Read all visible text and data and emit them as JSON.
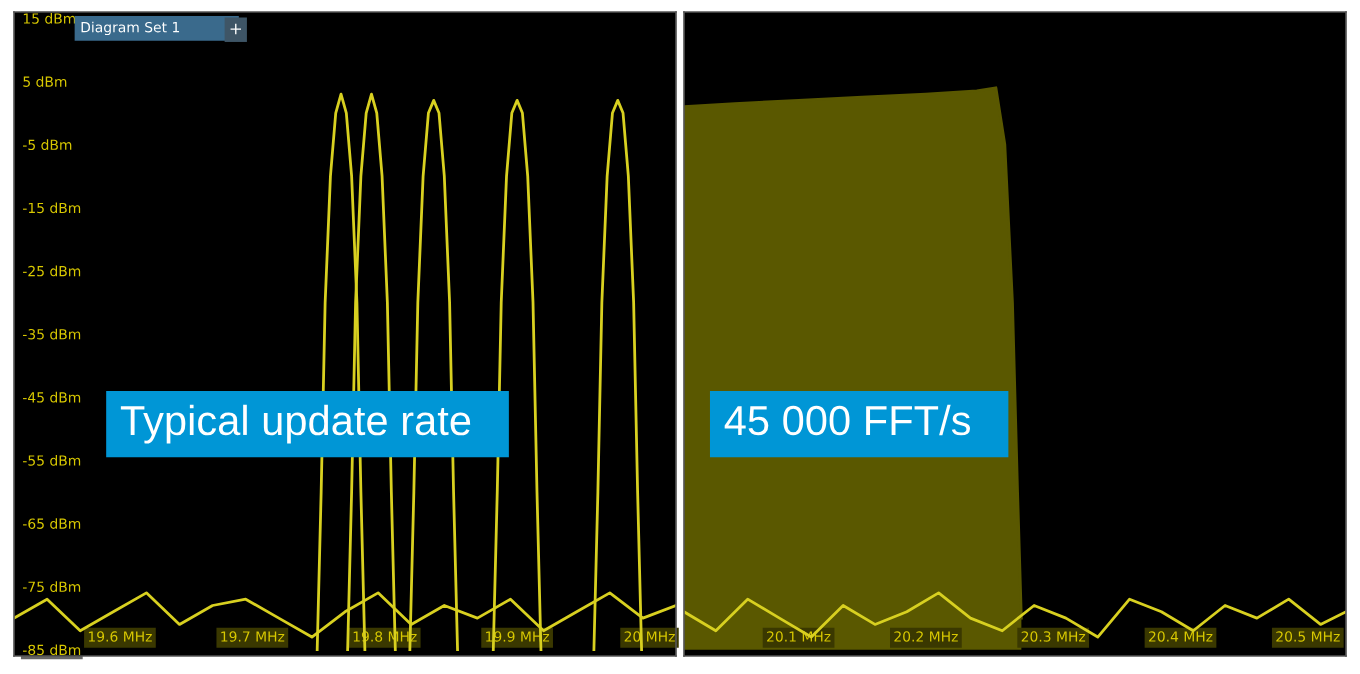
{
  "chart_data": [
    {
      "type": "line",
      "xlim": [
        19.52,
        20.02
      ],
      "ylim": [
        -86,
        16
      ],
      "xticks": [
        {
          "value": 19.6,
          "label": "19.6 MHz"
        },
        {
          "value": 19.7,
          "label": "19.7 MHz"
        },
        {
          "value": 19.8,
          "label": "19.8 MHz"
        },
        {
          "value": 19.9,
          "label": "19.9 MHz"
        },
        {
          "value": 20.0,
          "label": "20 MHz"
        }
      ],
      "yticks": [
        {
          "value": 15,
          "label": "15 dBm"
        },
        {
          "value": 5,
          "label": "5 dBm"
        },
        {
          "value": -5,
          "label": "-5 dBm"
        },
        {
          "value": -15,
          "label": "-15 dBm"
        },
        {
          "value": -25,
          "label": "-25 dBm"
        },
        {
          "value": -35,
          "label": "-35 dBm"
        },
        {
          "value": -45,
          "label": "-45 dBm"
        },
        {
          "value": -55,
          "label": "-55 dBm"
        },
        {
          "value": -65,
          "label": "-65 dBm"
        },
        {
          "value": -75,
          "label": "-75 dBm"
        },
        {
          "value": -85,
          "label": "-85 dBm"
        }
      ],
      "annotations": [
        "Diagram Set 1",
        "+",
        "Typical update rate"
      ],
      "series": [
        {
          "color": "#d8d020",
          "x": [
            19.52,
            19.545,
            19.57,
            19.595,
            19.62,
            19.645,
            19.67,
            19.695,
            19.72,
            19.745,
            19.77,
            19.795,
            19.82,
            19.845,
            19.87,
            19.895,
            19.92,
            19.945,
            19.97,
            19.995,
            20.02
          ],
          "values": [
            -80,
            -77,
            -82,
            -79,
            -76,
            -81,
            -78,
            -77,
            -80,
            -83,
            -79,
            -76,
            -81,
            -78,
            -80,
            -77,
            -82,
            -79,
            -76,
            -80,
            -78
          ]
        },
        {
          "color": "#d8d020",
          "x": [
            19.749,
            19.752,
            19.755,
            19.759,
            19.763,
            19.767,
            19.771,
            19.775,
            19.779,
            19.782,
            19.785
          ],
          "values": [
            -85,
            -60,
            -30,
            -10,
            0,
            3,
            0,
            -10,
            -30,
            -60,
            -85
          ]
        },
        {
          "color": "#d8d020",
          "x": [
            19.772,
            19.775,
            19.778,
            19.782,
            19.786,
            19.79,
            19.794,
            19.798,
            19.802,
            19.805,
            19.808
          ],
          "values": [
            -85,
            -60,
            -30,
            -10,
            0,
            3,
            0,
            -10,
            -30,
            -60,
            -85
          ]
        },
        {
          "color": "#d8d020",
          "x": [
            19.819,
            19.822,
            19.825,
            19.829,
            19.833,
            19.837,
            19.841,
            19.845,
            19.849,
            19.852,
            19.855
          ],
          "values": [
            -85,
            -60,
            -30,
            -10,
            0,
            2,
            0,
            -10,
            -30,
            -60,
            -85
          ]
        },
        {
          "color": "#d8d020",
          "x": [
            19.882,
            19.885,
            19.888,
            19.892,
            19.896,
            19.9,
            19.904,
            19.908,
            19.912,
            19.915,
            19.918
          ],
          "values": [
            -85,
            -60,
            -30,
            -10,
            0,
            2,
            0,
            -10,
            -30,
            -60,
            -85
          ]
        },
        {
          "color": "#d8d020",
          "x": [
            19.958,
            19.961,
            19.964,
            19.968,
            19.972,
            19.976,
            19.98,
            19.984,
            19.988,
            19.991,
            19.994
          ],
          "values": [
            -85,
            -60,
            -30,
            -10,
            0,
            2,
            0,
            -10,
            -30,
            -60,
            -85
          ]
        }
      ]
    },
    {
      "type": "line",
      "xlim": [
        20.01,
        20.53
      ],
      "ylim": [
        -86,
        16
      ],
      "tick_labels": "x",
      "xticks": [
        {
          "value": 20.1,
          "label": "20.1 MHz"
        },
        {
          "value": 20.2,
          "label": "20.2 MHz"
        },
        {
          "value": 20.3,
          "label": "20.3 MHz"
        },
        {
          "value": 20.4,
          "label": "20.4 MHz"
        },
        {
          "value": 20.5,
          "label": "20.5 MHz"
        }
      ],
      "annotations": [
        "45 000 FFT/s"
      ],
      "series": [
        {
          "type": "line",
          "color": "#5a5800",
          "x": [
            20.01,
            20.05,
            20.1,
            20.15,
            20.2,
            20.24,
            20.255,
            20.262,
            20.268,
            20.272,
            20.275
          ],
          "values": [
            1,
            1.5,
            2,
            2.5,
            3,
            3.5,
            4,
            -5,
            -30,
            -60,
            -80
          ],
          "upper": [
            1,
            1.5,
            2,
            2.5,
            3,
            3.5,
            4,
            -5,
            -30,
            -60,
            -80
          ],
          "lower": [
            -85,
            -85,
            -85,
            -85,
            -85,
            -85,
            -85,
            -85,
            -85,
            -85,
            -85
          ]
        },
        {
          "color": "#d8d020",
          "x": [
            20.01,
            20.035,
            20.06,
            20.085,
            20.11,
            20.135,
            20.16,
            20.185,
            20.21,
            20.235,
            20.26,
            20.285,
            20.31,
            20.335,
            20.36,
            20.385,
            20.41,
            20.435,
            20.46,
            20.485,
            20.51,
            20.53
          ],
          "values": [
            -79,
            -82,
            -77,
            -80,
            -83,
            -78,
            -81,
            -79,
            -76,
            -80,
            -82,
            -78,
            -80,
            -83,
            -77,
            -79,
            -82,
            -78,
            -80,
            -77,
            -81,
            -79
          ]
        }
      ]
    }
  ]
}
